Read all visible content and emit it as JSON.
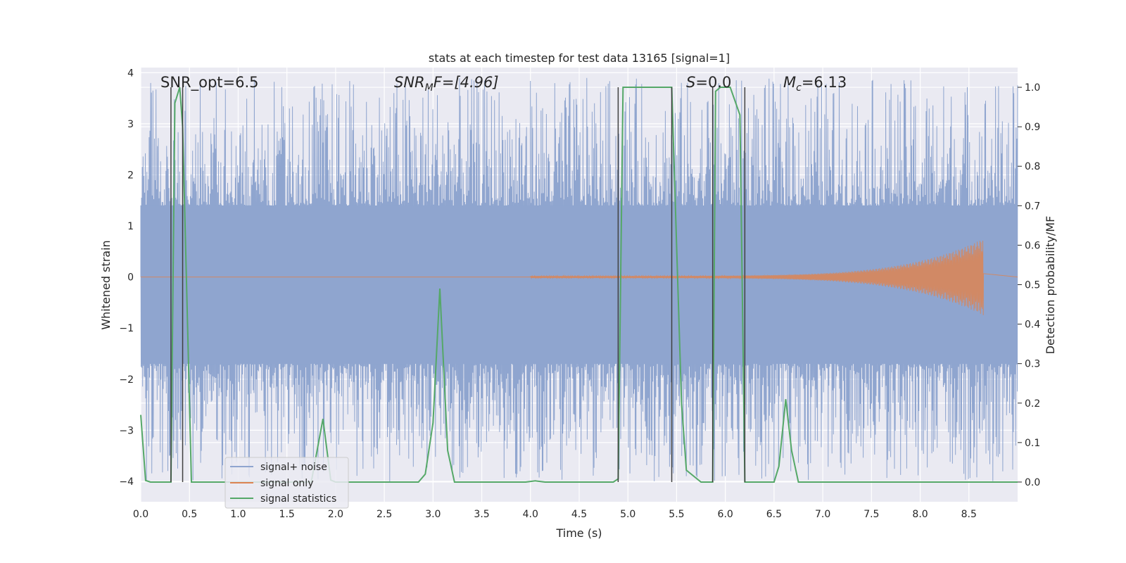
{
  "chart_data": {
    "type": "line",
    "title": "stats at each timestep for test data 13165 [signal=1]",
    "xlabel": "Time (s)",
    "ylabel": "Whitened strain",
    "y2label": "Detection probability/MF",
    "xlim": [
      0.0,
      9.0
    ],
    "ylim": [
      -4.4,
      4.1
    ],
    "y2lim": [
      -0.05,
      1.05
    ],
    "xticks": [
      0.0,
      0.5,
      1.0,
      1.5,
      2.0,
      2.5,
      3.0,
      3.5,
      4.0,
      4.5,
      5.0,
      5.5,
      6.0,
      6.5,
      7.0,
      7.5,
      8.0,
      8.5
    ],
    "xtick_labels": [
      "0.0",
      "0.5",
      "1.0",
      "1.5",
      "2.0",
      "2.5",
      "3.0",
      "3.5",
      "4.0",
      "4.5",
      "5.0",
      "5.5",
      "6.0",
      "6.5",
      "7.0",
      "7.5",
      "8.0",
      "8.5"
    ],
    "yticks": [
      4,
      3,
      2,
      1,
      0,
      -1,
      -2,
      -3,
      -4
    ],
    "ytick_labels": [
      "4",
      "3",
      "2",
      "1",
      "0",
      "−1",
      "−2",
      "−3",
      "−4"
    ],
    "y2ticks": [
      1.0,
      0.9,
      0.8,
      0.7,
      0.6,
      0.5,
      0.4,
      0.3,
      0.2,
      0.1,
      0.0
    ],
    "y2tick_labels": [
      "1.0",
      "0.9",
      "0.8",
      "0.7",
      "0.6",
      "0.5",
      "0.4",
      "0.3",
      "0.2",
      "0.1",
      "0.0"
    ],
    "grid": true,
    "legend_position": "lower-left",
    "annotations": {
      "snr_opt": "SNR_opt=6.5",
      "snr_mf_sym": "SNR",
      "snr_mf_sub": "M",
      "snr_mf_rest": "F=[4.96]",
      "s_sym": "S",
      "s_rest": "=0.0",
      "mc_sym": "M",
      "mc_sub": "c",
      "mc_rest": "=6.13"
    },
    "colors": {
      "noise": "#8fa5cf",
      "signal": "#dd8452",
      "stats": "#55a868",
      "vline": "#404040",
      "background": "#eaeaf2"
    },
    "noise_series": {
      "name": "signal+ noise",
      "band": [
        -1.7,
        1.4
      ],
      "spread_range": [
        -4.0,
        3.9
      ]
    },
    "signal_series": {
      "name": "signal only",
      "start": 4.0,
      "end": 8.65,
      "peak_amplitude": 0.75
    },
    "stats_series": {
      "name": "signal statistics",
      "x": [
        0.0,
        0.05,
        0.1,
        0.2,
        0.3,
        0.31,
        0.35,
        0.4,
        0.43,
        0.47,
        0.52,
        0.56,
        0.6,
        0.8,
        1.0,
        1.5,
        1.75,
        1.87,
        1.95,
        2.0,
        2.5,
        2.85,
        2.92,
        3.0,
        3.07,
        3.15,
        3.22,
        3.5,
        3.95,
        4.05,
        4.15,
        4.85,
        4.9,
        4.95,
        5.1,
        5.3,
        5.42,
        5.45,
        5.5,
        5.55,
        5.6,
        5.75,
        5.87,
        5.9,
        5.95,
        6.05,
        6.15,
        6.2,
        6.27,
        6.4,
        6.5,
        6.55,
        6.62,
        6.68,
        6.75,
        6.9,
        9.0
      ],
      "y": [
        0.17,
        0.004,
        0.0,
        0.0,
        0.0,
        0.0,
        0.96,
        1.0,
        0.9,
        0.5,
        0.0,
        0.0,
        0.0,
        0.0,
        0.0,
        0.0,
        0.0,
        0.16,
        0.005,
        0.0,
        0.0,
        0.0,
        0.02,
        0.15,
        0.49,
        0.08,
        0.0,
        0.0,
        0.0,
        0.003,
        0.0,
        0.0,
        0.008,
        1.0,
        1.0,
        1.0,
        1.0,
        1.0,
        0.6,
        0.2,
        0.03,
        0.0,
        0.0,
        0.99,
        1.0,
        1.0,
        0.93,
        0.0,
        0.0,
        0.0,
        0.0,
        0.04,
        0.21,
        0.08,
        0.0,
        0.0,
        0.0
      ]
    },
    "vlines": [
      0.31,
      0.43,
      4.9,
      5.45,
      5.87,
      6.2
    ]
  }
}
